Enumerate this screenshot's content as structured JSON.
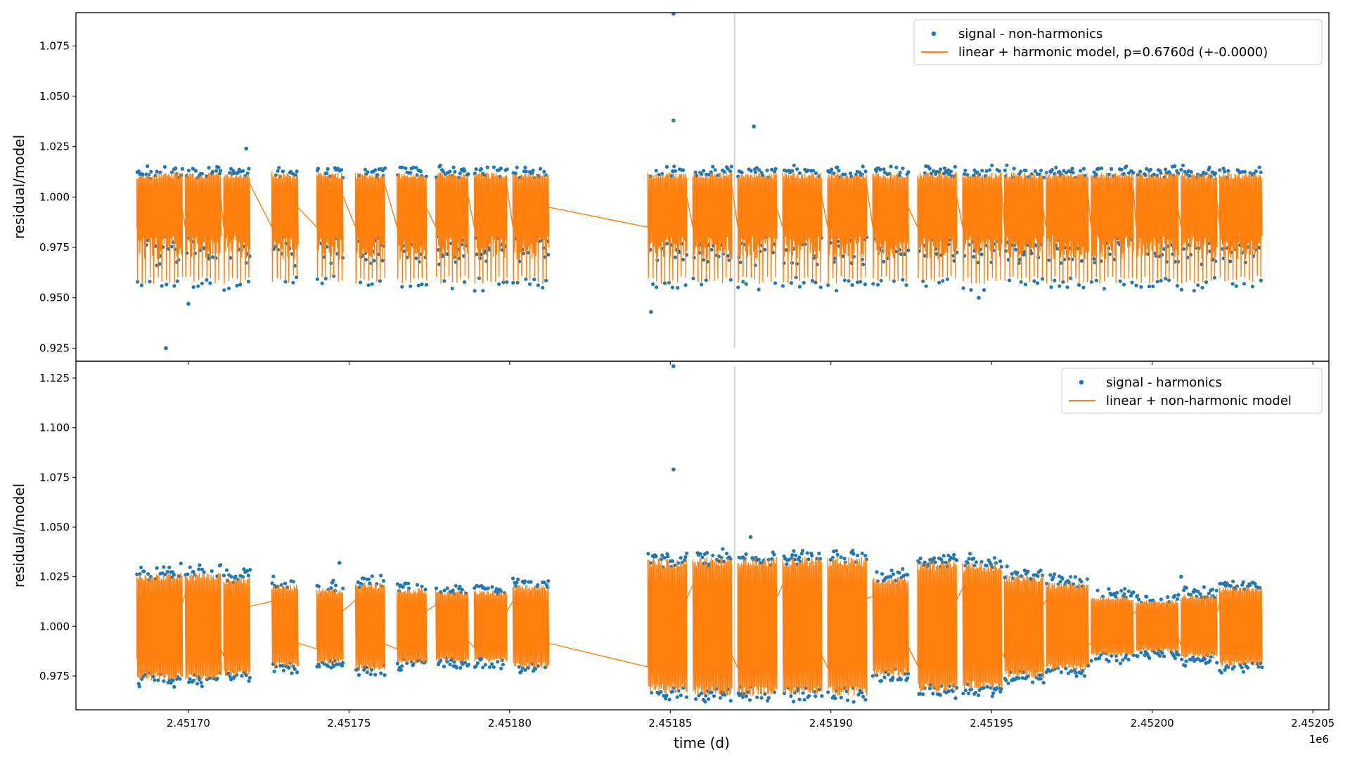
{
  "figure": {
    "xlabel": "time (d)",
    "x_offset_label": "1e6"
  },
  "colors": {
    "signal": "#1f77b4",
    "model": "#ff7f0e",
    "vline": "#d3d3d3"
  },
  "chart_data": [
    {
      "type": "line",
      "panel": "top",
      "ylabel": "residual/model",
      "xlim": [
        2.451665,
        2.452055
      ],
      "ylim": [
        0.9185,
        1.0915
      ],
      "x_ticks": [
        "2.45170",
        "2.45175",
        "2.45180",
        "2.45185",
        "2.45190",
        "2.45195",
        "2.45200",
        "2.45205"
      ],
      "x_tick_values": [
        2.4517,
        2.45175,
        2.4518,
        2.45185,
        2.4519,
        2.45195,
        2.452,
        2.45205
      ],
      "y_ticks": [
        "0.925",
        "0.950",
        "0.975",
        "1.000",
        "1.025",
        "1.050",
        "1.075"
      ],
      "y_tick_values": [
        0.925,
        0.95,
        0.975,
        1.0,
        1.025,
        1.05,
        1.075
      ],
      "vline_x": 2.45187,
      "legend_position": "upper right",
      "baseline": 1.0,
      "band_low": 0.957,
      "band_high": 1.012,
      "series": [
        {
          "name": "signal - non-harmonics",
          "kind": "scatter"
        },
        {
          "name": "linear + harmonic model, p=0.6760d (+-0.0000)",
          "kind": "line"
        }
      ],
      "segments": [
        [
          2.451684,
          2.451698
        ],
        [
          2.451699,
          2.45171
        ],
        [
          2.451711,
          2.451719
        ],
        [
          2.451726,
          2.451734
        ],
        [
          2.45174,
          2.451748
        ],
        [
          2.451752,
          2.451761
        ],
        [
          2.451765,
          2.451774
        ],
        [
          2.451777,
          2.451787
        ],
        [
          2.451789,
          2.451799
        ],
        [
          2.451801,
          2.451812
        ],
        [
          2.451843,
          2.451855
        ],
        [
          2.451857,
          2.451869
        ],
        [
          2.451871,
          2.451883
        ],
        [
          2.451885,
          2.451897
        ],
        [
          2.451899,
          2.451911
        ],
        [
          2.451913,
          2.451924
        ],
        [
          2.451927,
          2.451939
        ],
        [
          2.451941,
          2.451953
        ],
        [
          2.451954,
          2.451966
        ],
        [
          2.451967,
          2.45198
        ],
        [
          2.451981,
          2.451994
        ],
        [
          2.451995,
          2.452008
        ],
        [
          2.452009,
          2.45202
        ],
        [
          2.452021,
          2.452034
        ]
      ],
      "outliers": [
        {
          "x": 2.451693,
          "y": 0.925
        },
        {
          "x": 2.451851,
          "y": 1.091
        },
        {
          "x": 2.451851,
          "y": 1.038
        },
        {
          "x": 2.451876,
          "y": 1.035
        },
        {
          "x": 2.451844,
          "y": 0.943
        },
        {
          "x": 2.451946,
          "y": 0.95
        },
        {
          "x": 2.4517,
          "y": 0.947
        },
        {
          "x": 2.451718,
          "y": 1.024
        }
      ]
    },
    {
      "type": "line",
      "panel": "bottom",
      "ylabel": "residual/model",
      "xlim": [
        2.451665,
        2.452055
      ],
      "ylim": [
        0.958,
        1.1335
      ],
      "x_ticks": [
        "2.45170",
        "2.45175",
        "2.45180",
        "2.45185",
        "2.45190",
        "2.45195",
        "2.45200",
        "2.45205"
      ],
      "x_tick_values": [
        2.4517,
        2.45175,
        2.4518,
        2.45185,
        2.4519,
        2.45195,
        2.452,
        2.45205
      ],
      "y_ticks": [
        "0.975",
        "1.000",
        "1.025",
        "1.050",
        "1.075",
        "1.100",
        "1.125"
      ],
      "y_tick_values": [
        0.975,
        1.0,
        1.025,
        1.05,
        1.075,
        1.1,
        1.125
      ],
      "vline_x": 2.45187,
      "legend_position": "upper right",
      "baseline": 1.0,
      "series": [
        {
          "name": "signal - harmonics",
          "kind": "scatter"
        },
        {
          "name": "linear + non-harmonic model",
          "kind": "line"
        }
      ],
      "segments": [
        [
          2.451684,
          2.451698,
          0.027
        ],
        [
          2.451699,
          2.45171,
          0.027
        ],
        [
          2.451711,
          2.451719,
          0.025
        ],
        [
          2.451726,
          2.451734,
          0.021
        ],
        [
          2.45174,
          2.451748,
          0.019
        ],
        [
          2.451752,
          2.451761,
          0.022
        ],
        [
          2.451765,
          2.451774,
          0.019
        ],
        [
          2.451777,
          2.451787,
          0.018
        ],
        [
          2.451789,
          2.451799,
          0.018
        ],
        [
          2.451801,
          2.451812,
          0.021
        ],
        [
          2.451843,
          2.451855,
          0.034
        ],
        [
          2.451857,
          2.451869,
          0.035
        ],
        [
          2.451871,
          2.451883,
          0.035
        ],
        [
          2.451885,
          2.451897,
          0.035
        ],
        [
          2.451899,
          2.451911,
          0.035
        ],
        [
          2.451913,
          2.451924,
          0.025
        ],
        [
          2.451927,
          2.451939,
          0.033
        ],
        [
          2.451941,
          2.451953,
          0.032
        ],
        [
          2.451954,
          2.451966,
          0.026
        ],
        [
          2.451967,
          2.45198,
          0.022
        ],
        [
          2.451981,
          2.451994,
          0.015
        ],
        [
          2.451995,
          2.452008,
          0.013
        ],
        [
          2.452009,
          2.45202,
          0.016
        ],
        [
          2.452021,
          2.452034,
          0.02
        ]
      ],
      "outliers": [
        {
          "x": 2.451851,
          "y": 1.131
        },
        {
          "x": 2.451851,
          "y": 1.079
        },
        {
          "x": 2.451747,
          "y": 1.032
        },
        {
          "x": 2.451875,
          "y": 1.045
        },
        {
          "x": 2.452009,
          "y": 1.025
        }
      ]
    }
  ]
}
